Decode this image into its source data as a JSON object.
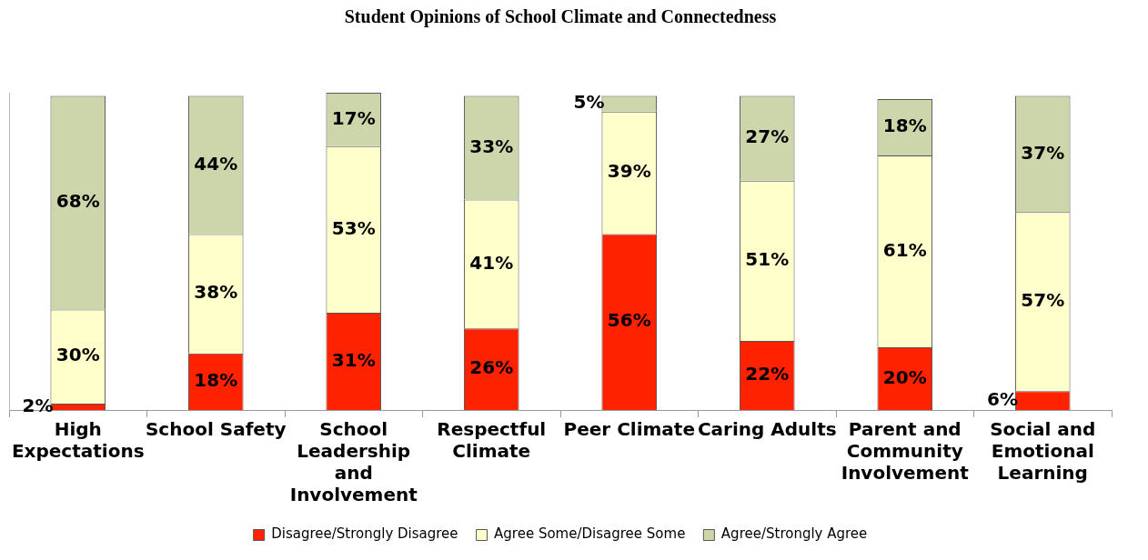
{
  "chart_data": {
    "type": "bar",
    "title": "Student Opinions of School Climate and Connectedness",
    "stacked": true,
    "relative": false,
    "legend": "bottom",
    "categories": [
      "High Expectations",
      "School Safety",
      "School Leadership and Involvement",
      "Respectful Climate",
      "Peer Climate",
      "Caring Adults",
      "Parent and Community Involvement",
      "Social and Emotional Learning"
    ],
    "series": [
      {
        "name": "Disagree/Strongly Disagree",
        "color": "#ff2200",
        "values": [
          2,
          18,
          31,
          26,
          56,
          22,
          20,
          6
        ],
        "value_labels": [
          "2%",
          "18%",
          "31%",
          "26%",
          "56%",
          "22%",
          "20%",
          "6%"
        ]
      },
      {
        "name": "Agree Some/Disagree Some",
        "color": "#ffffcc",
        "values": [
          30,
          38,
          53,
          41,
          39,
          51,
          61,
          57
        ],
        "value_labels": [
          "30%",
          "38%",
          "53%",
          "41%",
          "39%",
          "51%",
          "61%",
          "57%"
        ]
      },
      {
        "name": "Agree/Strongly Agree",
        "color": "#cdd5ab",
        "values": [
          68,
          44,
          17,
          33,
          5,
          27,
          18,
          37
        ],
        "value_labels": [
          "68%",
          "44%",
          "17%",
          "33%",
          "5%",
          "27%",
          "18%",
          "37%"
        ]
      }
    ]
  }
}
